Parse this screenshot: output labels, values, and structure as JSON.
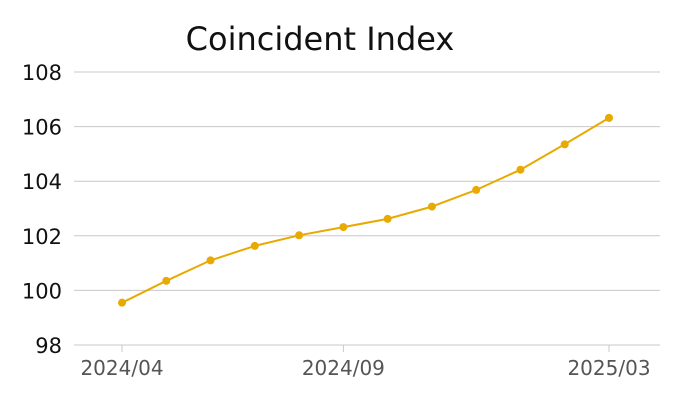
{
  "chart_data": {
    "type": "line",
    "title": "Coincident Index",
    "xlabel": "",
    "ylabel": "",
    "x": [
      "2024/04",
      "2024/05",
      "2024/06",
      "2024/07",
      "2024/08",
      "2024/09",
      "2024/10",
      "2024/11",
      "2024/12",
      "2025/01",
      "2025/02",
      "2025/03"
    ],
    "x_tick_labels": [
      "2024/04",
      "2024/09",
      "2025/03"
    ],
    "y_tick_labels": [
      "98",
      "100",
      "102",
      "104",
      "106",
      "108"
    ],
    "ylim": [
      98,
      108
    ],
    "grid": true,
    "legend": "none",
    "series": [
      {
        "color": "#E8A900",
        "values": [
          99.55,
          100.35,
          101.1,
          101.63,
          102.02,
          102.32,
          102.62,
          103.07,
          103.68,
          104.42,
          105.35,
          106.32
        ]
      }
    ]
  }
}
